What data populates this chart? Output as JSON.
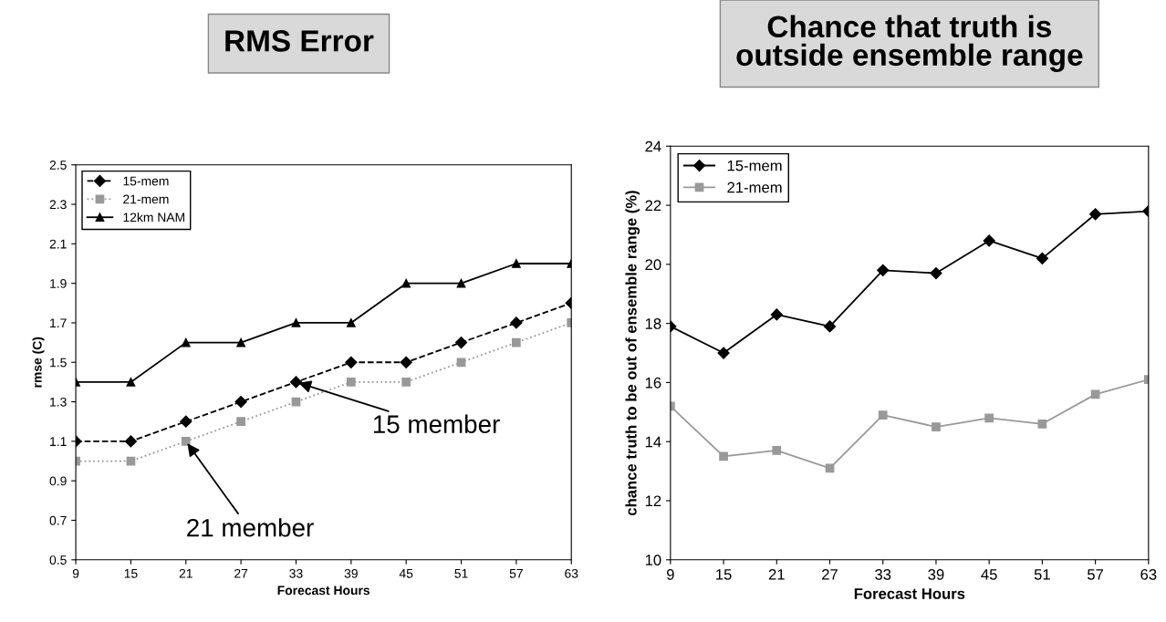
{
  "chart_data": [
    {
      "type": "line",
      "title": "RMS Error",
      "xlabel": "Forecast Hours",
      "ylabel": "rmse (C)",
      "x": [
        9,
        15,
        21,
        27,
        33,
        39,
        45,
        51,
        57,
        63
      ],
      "xlim": [
        9,
        63
      ],
      "xticks": [
        9,
        15,
        21,
        27,
        33,
        39,
        45,
        51,
        57,
        63
      ],
      "ylim": [
        0.5,
        2.5
      ],
      "yticks": [
        {
          "value": 0.5,
          "label": "0.5"
        },
        {
          "value": 0.7,
          "label": "0.7"
        },
        {
          "value": 0.9,
          "label": "0.9"
        },
        {
          "value": 1.1,
          "label": "1.1"
        },
        {
          "value": 1.3,
          "label": "1.3"
        },
        {
          "value": 1.5,
          "label": "1.5"
        },
        {
          "value": 1.7,
          "label": "1.7"
        },
        {
          "value": 1.9,
          "label": "1.9"
        },
        {
          "value": 2.1,
          "label": "2.1"
        },
        {
          "value": 2.3,
          "label": "2.3"
        },
        {
          "value": 2.5,
          "label": "2.5"
        }
      ],
      "grid": false,
      "legend": "top left",
      "series": [
        {
          "name": "15-mem",
          "color": "#000000",
          "marker": "diamond",
          "line_style": "dashed",
          "values": [
            1.1,
            1.1,
            1.2,
            1.3,
            1.4,
            1.5,
            1.5,
            1.6,
            1.7,
            1.8
          ]
        },
        {
          "name": "21-mem",
          "color": "#999999",
          "marker": "square",
          "line_style": "dotted",
          "values": [
            1.0,
            1.0,
            1.1,
            1.2,
            1.3,
            1.4,
            1.4,
            1.5,
            1.6,
            1.7
          ]
        },
        {
          "name": "12km NAM",
          "color": "#000000",
          "marker": "triangle",
          "line_style": "solid",
          "values": [
            1.4,
            1.4,
            1.6,
            1.6,
            1.7,
            1.7,
            1.9,
            1.9,
            2.0,
            2.0
          ]
        }
      ],
      "annotations": [
        {
          "text": "15 member",
          "x": 33,
          "y": 1.4
        },
        {
          "text": "21 member",
          "x": 21,
          "y": 1.1
        }
      ]
    },
    {
      "type": "line",
      "title": "Chance that truth is\noutside ensemble range",
      "xlabel": "Forecast Hours",
      "ylabel": "chance truth to be out of ensemble range (%)",
      "x": [
        9,
        15,
        21,
        27,
        33,
        39,
        45,
        51,
        57,
        63
      ],
      "xlim": [
        9,
        63
      ],
      "xticks": [
        9,
        15,
        21,
        27,
        33,
        39,
        45,
        51,
        57,
        63
      ],
      "ylim": [
        10,
        24
      ],
      "yticks": [
        10,
        12,
        14,
        16,
        18,
        20,
        22,
        24
      ],
      "grid": false,
      "legend": "top left",
      "series": [
        {
          "name": "15-mem",
          "color": "#000000",
          "marker": "diamond",
          "line_style": "solid",
          "values": [
            17.9,
            17.0,
            18.3,
            17.9,
            19.8,
            19.7,
            20.8,
            20.2,
            21.7,
            21.8
          ]
        },
        {
          "name": "21-mem",
          "color": "#999999",
          "marker": "square",
          "line_style": "solid",
          "values": [
            15.2,
            13.5,
            13.7,
            13.1,
            14.9,
            14.5,
            14.8,
            14.6,
            15.6,
            16.1
          ]
        }
      ]
    }
  ]
}
